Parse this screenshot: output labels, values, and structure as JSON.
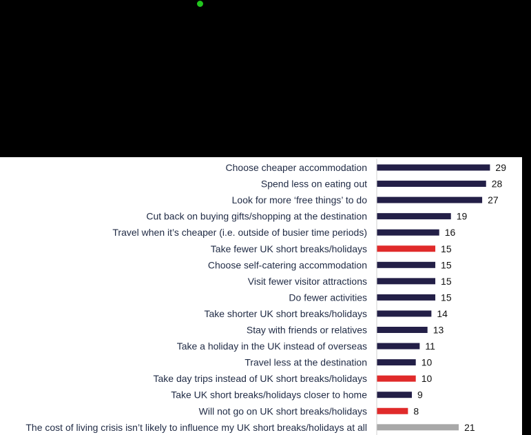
{
  "colors": {
    "default": "#231f47",
    "highlight": "#e02a2a",
    "neutral": "#a8a8a8"
  },
  "chart_data": {
    "type": "bar",
    "orientation": "horizontal",
    "title": "",
    "xlabel": "",
    "ylabel": "",
    "xlim": [
      0,
      30
    ],
    "grid": false,
    "legend": "none",
    "categories": [
      "Choose cheaper accommodation",
      "Spend less on eating out",
      "Look for more ‘free things’ to do",
      "Cut back on buying gifts/shopping at the destination",
      "Travel when it’s cheaper (i.e. outside of busier time periods)",
      "Take fewer UK short breaks/holidays",
      "Choose self-catering accommodation",
      "Visit fewer visitor attractions",
      "Do fewer activities",
      "Take shorter UK short breaks/holidays",
      "Stay with friends or relatives",
      "Take a holiday in the UK instead of overseas",
      "Travel less at the destination",
      "Take day trips instead of UK short breaks/holidays",
      "Take UK short breaks/holidays closer to home",
      "Will not go on UK short breaks/holidays",
      "The cost of living crisis isn’t likely to influence my UK short breaks/holidays at all"
    ],
    "values": [
      29,
      28,
      27,
      19,
      16,
      15,
      15,
      15,
      15,
      14,
      13,
      11,
      10,
      10,
      9,
      8,
      21
    ],
    "bar_colors": [
      "default",
      "default",
      "default",
      "default",
      "default",
      "highlight",
      "default",
      "default",
      "default",
      "default",
      "default",
      "default",
      "default",
      "highlight",
      "default",
      "highlight",
      "neutral"
    ]
  }
}
